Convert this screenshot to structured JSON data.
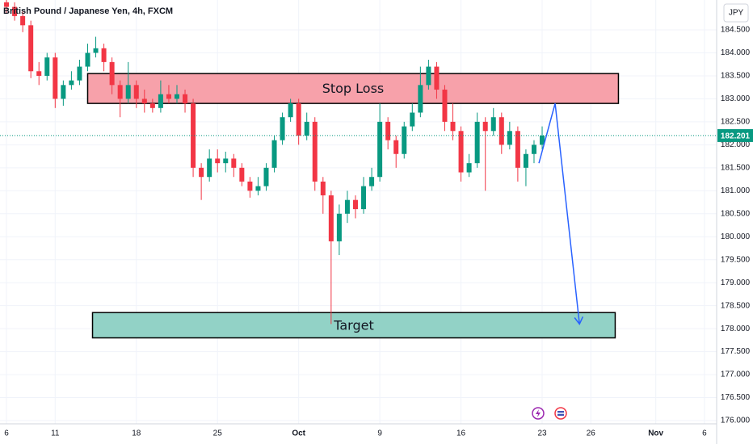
{
  "chart_data": {
    "type": "candlestick",
    "title": "British Pound / Japanese Yen, 4h, FXCM",
    "currency": "JPY",
    "up_color": "#089981",
    "down_color": "#f23645",
    "x": [
      0,
      0.5,
      1,
      1.5,
      2,
      2.5,
      3,
      3.5,
      4,
      4.5,
      5,
      5.5,
      6,
      6.5,
      7,
      7.5,
      8,
      8.5,
      9,
      9.5,
      10,
      10.5,
      11,
      11.5,
      12,
      12.5,
      13,
      13.5,
      14,
      14.5,
      15,
      15.5,
      16,
      16.5,
      17,
      17.5,
      18,
      18.5,
      19,
      19.5,
      20,
      20.5,
      21,
      21.5,
      22,
      22.5,
      23,
      23.5,
      24,
      24.5,
      25,
      25.5,
      26,
      26.5,
      27,
      27.5,
      28,
      28.5,
      29,
      29.5,
      30,
      30.5,
      31,
      31.5,
      32,
      32.5,
      33
    ],
    "ohlc": [
      [
        185.1,
        185.2,
        184.85,
        185.0
      ],
      [
        185.0,
        185.1,
        184.7,
        184.8
      ],
      [
        184.8,
        184.9,
        184.45,
        184.6
      ],
      [
        184.6,
        184.7,
        183.45,
        183.6
      ],
      [
        183.6,
        183.8,
        183.3,
        183.5
      ],
      [
        183.5,
        184.0,
        183.4,
        183.9
      ],
      [
        183.9,
        184.0,
        182.8,
        183.0
      ],
      [
        183.0,
        183.4,
        182.85,
        183.3
      ],
      [
        183.3,
        183.6,
        183.2,
        183.4
      ],
      [
        183.4,
        183.85,
        183.3,
        183.7
      ],
      [
        183.7,
        184.2,
        183.6,
        184.0
      ],
      [
        184.0,
        184.35,
        183.9,
        184.1
      ],
      [
        184.1,
        184.2,
        183.6,
        183.8
      ],
      [
        183.8,
        183.9,
        183.1,
        183.3
      ],
      [
        183.3,
        183.4,
        182.6,
        183.0
      ],
      [
        183.0,
        183.8,
        182.9,
        183.3
      ],
      [
        183.3,
        183.4,
        182.8,
        183.0
      ],
      [
        183.0,
        183.2,
        182.7,
        182.9
      ],
      [
        182.9,
        183.0,
        182.7,
        182.8
      ],
      [
        182.8,
        183.4,
        182.7,
        183.1
      ],
      [
        183.1,
        183.3,
        182.9,
        183.0
      ],
      [
        183.0,
        183.3,
        182.9,
        183.1
      ],
      [
        183.1,
        183.2,
        182.7,
        182.9
      ],
      [
        182.9,
        183.0,
        181.3,
        181.5
      ],
      [
        181.5,
        181.6,
        180.8,
        181.3
      ],
      [
        181.3,
        181.9,
        181.2,
        181.7
      ],
      [
        181.7,
        181.9,
        181.4,
        181.6
      ],
      [
        181.6,
        181.85,
        181.4,
        181.7
      ],
      [
        181.7,
        181.8,
        181.3,
        181.5
      ],
      [
        181.5,
        181.6,
        181.1,
        181.2
      ],
      [
        181.2,
        181.3,
        180.85,
        181.0
      ],
      [
        181.0,
        181.3,
        180.9,
        181.1
      ],
      [
        181.1,
        181.6,
        181.0,
        181.5
      ],
      [
        181.5,
        182.2,
        181.4,
        182.1
      ],
      [
        182.1,
        182.7,
        182.0,
        182.6
      ],
      [
        182.6,
        183.0,
        182.5,
        182.9
      ],
      [
        182.9,
        183.0,
        182.0,
        182.2
      ],
      [
        182.2,
        182.7,
        182.1,
        182.5
      ],
      [
        182.5,
        182.6,
        181.0,
        181.2
      ],
      [
        181.2,
        181.3,
        180.5,
        180.9
      ],
      [
        180.9,
        181.0,
        178.1,
        179.9
      ],
      [
        179.9,
        180.7,
        179.6,
        180.5
      ],
      [
        180.5,
        181.0,
        180.3,
        180.8
      ],
      [
        180.8,
        180.9,
        180.4,
        180.6
      ],
      [
        180.6,
        181.3,
        180.5,
        181.1
      ],
      [
        181.1,
        181.5,
        181.0,
        181.3
      ],
      [
        181.3,
        182.9,
        181.2,
        182.5
      ],
      [
        182.5,
        182.6,
        181.9,
        182.1
      ],
      [
        182.1,
        182.2,
        181.5,
        181.8
      ],
      [
        181.8,
        182.5,
        181.7,
        182.4
      ],
      [
        182.4,
        182.9,
        182.3,
        182.7
      ],
      [
        182.7,
        183.7,
        182.6,
        183.3
      ],
      [
        183.3,
        183.85,
        183.2,
        183.7
      ],
      [
        183.7,
        183.8,
        183.0,
        183.2
      ],
      [
        183.2,
        183.3,
        182.3,
        182.5
      ],
      [
        182.5,
        182.9,
        182.1,
        182.3
      ],
      [
        182.3,
        182.4,
        181.2,
        181.4
      ],
      [
        181.4,
        181.8,
        181.3,
        181.6
      ],
      [
        181.6,
        182.7,
        181.5,
        182.5
      ],
      [
        182.5,
        182.6,
        181.0,
        182.3
      ],
      [
        182.3,
        182.8,
        182.2,
        182.6
      ],
      [
        182.6,
        182.7,
        181.8,
        182.0
      ],
      [
        182.0,
        182.5,
        181.9,
        182.3
      ],
      [
        182.3,
        182.4,
        181.2,
        181.5
      ],
      [
        181.5,
        181.9,
        181.1,
        181.8
      ],
      [
        181.8,
        182.1,
        181.6,
        182.0
      ],
      [
        182.0,
        182.4,
        181.9,
        182.2
      ]
    ],
    "last_price": 182.201,
    "xlim": [
      -0.4,
      43.75
    ],
    "ylim": [
      175.93,
      185.15
    ],
    "xticks": [
      {
        "value": 0,
        "label": "6"
      },
      {
        "value": 3,
        "label": "11"
      },
      {
        "value": 8,
        "label": "18"
      },
      {
        "value": 13,
        "label": "25"
      },
      {
        "value": 18,
        "label": "Oct"
      },
      {
        "value": 23,
        "label": "9"
      },
      {
        "value": 28,
        "label": "16"
      },
      {
        "value": 33,
        "label": "23"
      },
      {
        "value": 36,
        "label": "26"
      },
      {
        "value": 40,
        "label": "Nov"
      },
      {
        "value": 43,
        "label": "6"
      }
    ],
    "yticks": [
      {
        "value": 176,
        "label": "176.000"
      },
      {
        "value": 176.5,
        "label": "176.500"
      },
      {
        "value": 177,
        "label": "177.000"
      },
      {
        "value": 177.5,
        "label": "177.500"
      },
      {
        "value": 178,
        "label": "178.000"
      },
      {
        "value": 178.5,
        "label": "178.500"
      },
      {
        "value": 179,
        "label": "179.000"
      },
      {
        "value": 179.5,
        "label": "179.500"
      },
      {
        "value": 180,
        "label": "180.000"
      },
      {
        "value": 180.5,
        "label": "180.500"
      },
      {
        "value": 181,
        "label": "181.000"
      },
      {
        "value": 181.5,
        "label": "181.500"
      },
      {
        "value": 182,
        "label": "182.000"
      },
      {
        "value": 182.5,
        "label": "182.500"
      },
      {
        "value": 183,
        "label": "183.000"
      },
      {
        "value": 183.5,
        "label": "183.500"
      },
      {
        "value": 184,
        "label": "184.000"
      },
      {
        "value": 184.5,
        "label": "184.500"
      }
    ],
    "grid": true,
    "zones": [
      {
        "label": "Stop Loss",
        "color": "#f7a1aa",
        "xrange": [
          5,
          37.7
        ],
        "yrange": [
          182.9,
          183.55
        ]
      },
      {
        "label": "Target",
        "color": "#92d2c6",
        "xrange": [
          5.3,
          37.5
        ],
        "yrange": [
          177.8,
          178.35
        ]
      }
    ],
    "arrow": {
      "color": "#2962ff",
      "x": [
        32.8,
        33.8,
        35.3
      ],
      "y": [
        181.6,
        182.9,
        178.1
      ]
    }
  }
}
